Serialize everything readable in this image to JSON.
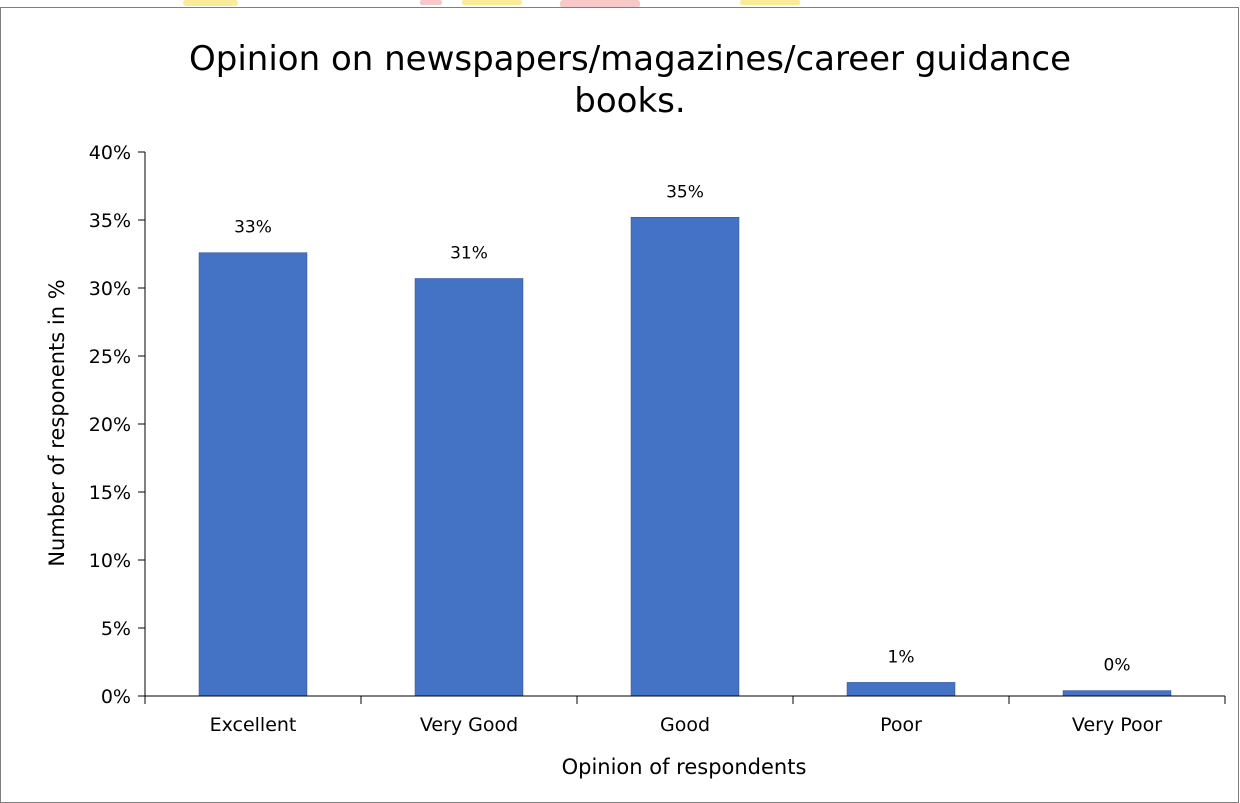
{
  "chart_data": {
    "type": "bar",
    "title": "Opinion on newspapers/magazines/career guidance books.",
    "title_lines": [
      "Opinion on newspapers/magazines/career guidance",
      "books."
    ],
    "xlabel": "Opinion of respondents",
    "ylabel": "Number of responents in %",
    "categories": [
      "Excellent",
      "Very Good",
      "Good",
      "Poor",
      "Very Poor"
    ],
    "values": [
      32.6,
      30.7,
      35.2,
      1.0,
      0.4
    ],
    "data_labels": [
      "33%",
      "31%",
      "35%",
      "1%",
      "0%"
    ],
    "ylim": [
      0,
      40
    ],
    "yticks": [
      0,
      5,
      10,
      15,
      20,
      25,
      30,
      35,
      40
    ],
    "ytick_labels": [
      "0%",
      "5%",
      "10%",
      "15%",
      "20%",
      "25%",
      "30%",
      "35%",
      "40%"
    ],
    "grid": false,
    "legend": "none",
    "bar_color": "#4472C4",
    "frame_color": "#7f7f7f",
    "watermark_colors": [
      "#f7e26b",
      "#f3b0b0"
    ]
  }
}
